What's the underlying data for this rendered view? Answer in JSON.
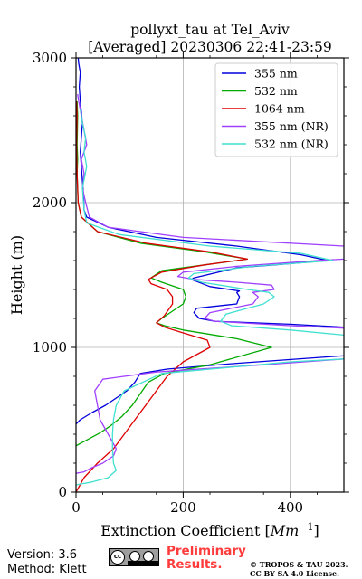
{
  "chart_data": {
    "type": "line",
    "title": "pollyxt_tau at Tel_Aviv",
    "subtitle": "[Averaged] 20230306 22:41-23:59",
    "xlabel": "Extinction Coefficient [",
    "xlabel_unit_base": "Mm",
    "xlabel_unit_exp": "−1",
    "xlabel_close": "]",
    "ylabel": "Height (m)",
    "xlim": [
      0,
      500
    ],
    "ylim": [
      0,
      3000
    ],
    "xticks": [
      0,
      200,
      400
    ],
    "yticks": [
      0,
      1000,
      2000,
      3000
    ],
    "grid": true,
    "legend_position": "top-right",
    "series": [
      {
        "name": "355 nm",
        "color": "#0000dd",
        "x": [
          0,
          8,
          30,
          55,
          75,
          95,
          110,
          120,
          170,
          300,
          490,
          700,
          700,
          400,
          260,
          230,
          220,
          225,
          300,
          305,
          300,
          305,
          250,
          215,
          220,
          300,
          370,
          470,
          420,
          300,
          150,
          60,
          20,
          15,
          14,
          12,
          10,
          8,
          10,
          12,
          8,
          6,
          8,
          5,
          4
        ],
        "y": [
          470,
          500,
          550,
          600,
          650,
          700,
          760,
          820,
          850,
          890,
          940,
          980,
          1100,
          1160,
          1180,
          1200,
          1240,
          1270,
          1300,
          1350,
          1380,
          1390,
          1420,
          1470,
          1480,
          1550,
          1570,
          1600,
          1640,
          1700,
          1760,
          1830,
          1900,
          1950,
          2050,
          2150,
          2250,
          2350,
          2450,
          2550,
          2700,
          2800,
          2900,
          2960,
          3000
        ]
      },
      {
        "name": "532 nm",
        "color": "#00aa00",
        "x": [
          0,
          20,
          45,
          65,
          85,
          105,
          120,
          135,
          165,
          250,
          365,
          300,
          200,
          165,
          150,
          160,
          200,
          205,
          200,
          160,
          140,
          160,
          240,
          320,
          240,
          120,
          40,
          10,
          4,
          3,
          2,
          3,
          2,
          3,
          2
        ],
        "y": [
          320,
          360,
          410,
          460,
          520,
          600,
          680,
          760,
          820,
          880,
          1000,
          1060,
          1120,
          1150,
          1170,
          1200,
          1300,
          1350,
          1400,
          1450,
          1480,
          1530,
          1570,
          1610,
          1660,
          1720,
          1800,
          1900,
          2000,
          2100,
          2200,
          2300,
          2400,
          2600,
          2700
        ]
      },
      {
        "name": "1064 nm",
        "color": "#dd0000",
        "x": [
          0,
          15,
          40,
          70,
          90,
          110,
          130,
          150,
          170,
          200,
          250,
          245,
          200,
          165,
          150,
          165,
          180,
          180,
          170,
          140,
          135,
          160,
          240,
          320,
          250,
          130,
          40,
          10,
          4,
          3,
          2,
          1,
          2,
          1
        ],
        "y": [
          0,
          100,
          200,
          300,
          400,
          500,
          600,
          700,
          800,
          900,
          1000,
          1050,
          1100,
          1140,
          1170,
          1220,
          1300,
          1350,
          1400,
          1440,
          1470,
          1520,
          1570,
          1610,
          1660,
          1720,
          1800,
          1900,
          2000,
          2100,
          2200,
          2400,
          2600,
          2700
        ]
      },
      {
        "name": "355 nm (NR)",
        "color": "#a040ff",
        "x": [
          0,
          15,
          30,
          50,
          70,
          75,
          60,
          45,
          40,
          35,
          50,
          150,
          350,
          500,
          700,
          700,
          400,
          260,
          240,
          250,
          330,
          340,
          330,
          370,
          365,
          300,
          220,
          190,
          200,
          300,
          450,
          600,
          800,
          500,
          200,
          60,
          25,
          18,
          12,
          15,
          10,
          20,
          15,
          10,
          5,
          3
        ],
        "y": [
          130,
          140,
          170,
          200,
          250,
          300,
          400,
          500,
          600,
          700,
          780,
          830,
          880,
          920,
          960,
          1100,
          1150,
          1180,
          1200,
          1240,
          1300,
          1350,
          1380,
          1400,
          1430,
          1450,
          1470,
          1490,
          1520,
          1560,
          1600,
          1630,
          1660,
          1700,
          1760,
          1830,
          1900,
          2000,
          2100,
          2200,
          2300,
          2400,
          2500,
          2600,
          2700,
          2750
        ]
      },
      {
        "name": "532 nm (NR)",
        "color": "#40e0d0",
        "x": [
          0,
          30,
          60,
          75,
          70,
          68,
          68,
          70,
          75,
          90,
          160,
          400,
          800,
          400,
          290,
          270,
          280,
          350,
          370,
          360,
          320,
          235,
          210,
          220,
          330,
          480,
          420,
          250,
          80,
          20,
          15,
          12,
          20,
          15,
          18,
          12,
          8
        ],
        "y": [
          50,
          70,
          100,
          150,
          200,
          300,
          400,
          500,
          600,
          700,
          820,
          900,
          980,
          1120,
          1150,
          1180,
          1230,
          1300,
          1350,
          1380,
          1400,
          1450,
          1480,
          1510,
          1560,
          1600,
          1650,
          1700,
          1780,
          1860,
          1950,
          2100,
          2250,
          2350,
          2450,
          2550,
          2650
        ]
      }
    ]
  },
  "footer": {
    "version": "Version: 3.6",
    "method": "Method: Klett",
    "badge": "cc",
    "preliminary_line1": "Preliminary",
    "preliminary_line2": "Results.",
    "copyright_line1": "© TROPOS & TAU 2023.",
    "copyright_line2": "CC BY SA 4.0 License."
  }
}
